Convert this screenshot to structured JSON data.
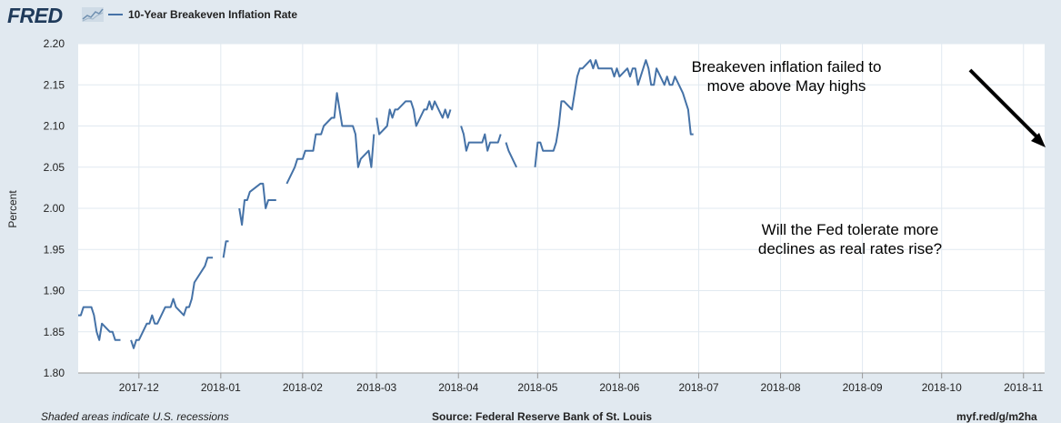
{
  "header": {
    "logo_text": "FRED",
    "logo_icon": "trend-chart-icon",
    "legend_label": "10-Year Breakeven Inflation Rate"
  },
  "footer": {
    "left": "Shaded areas indicate U.S. recessions",
    "source": "Source: Federal Reserve Bank of St. Louis",
    "link": "myf.red/g/m2ha"
  },
  "colors": {
    "series": "#4572a7",
    "panel_bg": "#e1e9f0",
    "plot_bg": "#ffffff",
    "grid": "#e1e9f0",
    "arrow": "#000000"
  },
  "chart_data": {
    "type": "line",
    "title": "",
    "xlabel": "",
    "ylabel": "Percent",
    "ylim": [
      1.8,
      2.2
    ],
    "yticks": [
      "1.80",
      "1.85",
      "1.90",
      "1.95",
      "2.00",
      "2.05",
      "2.10",
      "2.15",
      "2.20"
    ],
    "xticks": [
      "2017-12",
      "2018-01",
      "2018-02",
      "2018-03",
      "2018-04",
      "2018-05",
      "2018-06",
      "2018-07",
      "2018-08",
      "2018-09",
      "2018-10",
      "2018-11"
    ],
    "xlim": [
      "2017-11-08",
      "2018-11-09"
    ],
    "grid": true,
    "legend_position": "top-left",
    "series": [
      {
        "name": "10-Year Breakeven Inflation Rate",
        "segments": [
          {
            "x": [
              "2017-11-08",
              "2017-11-09",
              "2017-11-10",
              "2017-11-13",
              "2017-11-14",
              "2017-11-15",
              "2017-11-16",
              "2017-11-17",
              "2017-11-20",
              "2017-11-21",
              "2017-11-22",
              "2017-11-24"
            ],
            "y": [
              1.87,
              1.87,
              1.88,
              1.88,
              1.87,
              1.85,
              1.84,
              1.86,
              1.85,
              1.85,
              1.84,
              1.84
            ]
          },
          {
            "x": [
              "2017-11-28",
              "2017-11-29",
              "2017-11-30",
              "2017-12-01",
              "2017-12-04",
              "2017-12-05",
              "2017-12-06",
              "2017-12-07",
              "2017-12-08",
              "2017-12-11",
              "2017-12-12",
              "2017-12-13",
              "2017-12-14",
              "2017-12-15",
              "2017-12-18",
              "2017-12-19",
              "2017-12-20",
              "2017-12-21",
              "2017-12-22",
              "2017-12-26",
              "2017-12-27",
              "2017-12-28",
              "2017-12-29"
            ],
            "y": [
              1.84,
              1.83,
              1.84,
              1.84,
              1.86,
              1.86,
              1.87,
              1.86,
              1.86,
              1.88,
              1.88,
              1.88,
              1.89,
              1.88,
              1.87,
              1.88,
              1.88,
              1.89,
              1.91,
              1.93,
              1.94,
              1.94,
              1.94
            ]
          },
          {
            "x": [
              "2018-01-02",
              "2018-01-03",
              "2018-01-04"
            ],
            "y": [
              1.94,
              1.96,
              1.96
            ]
          },
          {
            "x": [
              "2018-01-08",
              "2018-01-09",
              "2018-01-10",
              "2018-01-11",
              "2018-01-12",
              "2018-01-16",
              "2018-01-17",
              "2018-01-18",
              "2018-01-19",
              "2018-01-22"
            ],
            "y": [
              2.0,
              1.98,
              2.01,
              2.01,
              2.02,
              2.03,
              2.03,
              2.0,
              2.01,
              2.01
            ]
          },
          {
            "x": [
              "2018-01-26",
              "2018-01-29",
              "2018-01-30",
              "2018-01-31",
              "2018-02-01",
              "2018-02-02",
              "2018-02-05",
              "2018-02-06",
              "2018-02-07",
              "2018-02-08",
              "2018-02-09",
              "2018-02-12",
              "2018-02-13",
              "2018-02-14",
              "2018-02-15",
              "2018-02-16",
              "2018-02-20",
              "2018-02-21",
              "2018-02-22",
              "2018-02-23",
              "2018-02-26",
              "2018-02-27",
              "2018-02-28"
            ],
            "y": [
              2.03,
              2.05,
              2.06,
              2.06,
              2.06,
              2.07,
              2.07,
              2.09,
              2.09,
              2.09,
              2.1,
              2.11,
              2.11,
              2.14,
              2.12,
              2.1,
              2.1,
              2.09,
              2.05,
              2.06,
              2.07,
              2.05,
              2.09
            ]
          },
          {
            "x": [
              "2018-03-01",
              "2018-03-02",
              "2018-03-05",
              "2018-03-06",
              "2018-03-07",
              "2018-03-08",
              "2018-03-09",
              "2018-03-12",
              "2018-03-13",
              "2018-03-14",
              "2018-03-15",
              "2018-03-16",
              "2018-03-19",
              "2018-03-20",
              "2018-03-21",
              "2018-03-22",
              "2018-03-23",
              "2018-03-26",
              "2018-03-27",
              "2018-03-28",
              "2018-03-29"
            ],
            "y": [
              2.11,
              2.09,
              2.1,
              2.12,
              2.11,
              2.12,
              2.12,
              2.13,
              2.13,
              2.13,
              2.12,
              2.1,
              2.12,
              2.12,
              2.13,
              2.12,
              2.13,
              2.11,
              2.12,
              2.11,
              2.12
            ]
          },
          {
            "x": [
              "2018-04-02",
              "2018-04-03",
              "2018-04-04",
              "2018-04-05",
              "2018-04-06",
              "2018-04-09",
              "2018-04-10",
              "2018-04-11",
              "2018-04-12",
              "2018-04-13",
              "2018-04-16",
              "2018-04-17"
            ],
            "y": [
              2.1,
              2.09,
              2.07,
              2.08,
              2.08,
              2.08,
              2.08,
              2.09,
              2.07,
              2.08,
              2.08,
              2.09
            ]
          },
          {
            "x": [
              "2018-04-19",
              "2018-04-20",
              "2018-04-23"
            ],
            "y": [
              2.08,
              2.07,
              2.05
            ]
          },
          {
            "x": [
              "2018-04-30",
              "2018-05-01",
              "2018-05-02",
              "2018-05-03",
              "2018-05-04",
              "2018-05-07",
              "2018-05-08",
              "2018-05-09",
              "2018-05-10",
              "2018-05-11",
              "2018-05-14",
              "2018-05-15",
              "2018-05-16",
              "2018-05-17",
              "2018-05-18",
              "2018-05-21",
              "2018-05-22",
              "2018-05-23",
              "2018-05-24",
              "2018-05-25",
              "2018-05-29",
              "2018-05-30",
              "2018-05-31",
              "2018-06-01",
              "2018-06-04",
              "2018-06-05",
              "2018-06-06",
              "2018-06-07",
              "2018-06-08",
              "2018-06-11",
              "2018-06-12",
              "2018-06-13",
              "2018-06-14",
              "2018-06-15",
              "2018-06-18",
              "2018-06-19",
              "2018-06-20",
              "2018-06-21",
              "2018-06-22",
              "2018-06-25",
              "2018-06-26",
              "2018-06-27",
              "2018-06-28",
              "2018-06-29"
            ],
            "y": [
              2.05,
              2.08,
              2.08,
              2.07,
              2.07,
              2.07,
              2.08,
              2.1,
              2.13,
              2.13,
              2.12,
              2.14,
              2.16,
              2.17,
              2.17,
              2.18,
              2.17,
              2.18,
              2.17,
              2.17,
              2.17,
              2.16,
              2.17,
              2.16,
              2.17,
              2.16,
              2.17,
              2.17,
              2.15,
              2.18,
              2.17,
              2.15,
              2.15,
              2.17,
              2.15,
              2.16,
              2.15,
              2.15,
              2.16,
              2.14,
              2.13,
              2.12,
              2.09,
              2.09
            ]
          }
        ]
      }
    ],
    "annotations": [
      {
        "text_lines": [
          "Breakeven inflation failed to",
          "move above May highs"
        ]
      },
      {
        "text_lines": [
          "Will the Fed tolerate more",
          "declines as real rates rise?"
        ]
      }
    ]
  }
}
